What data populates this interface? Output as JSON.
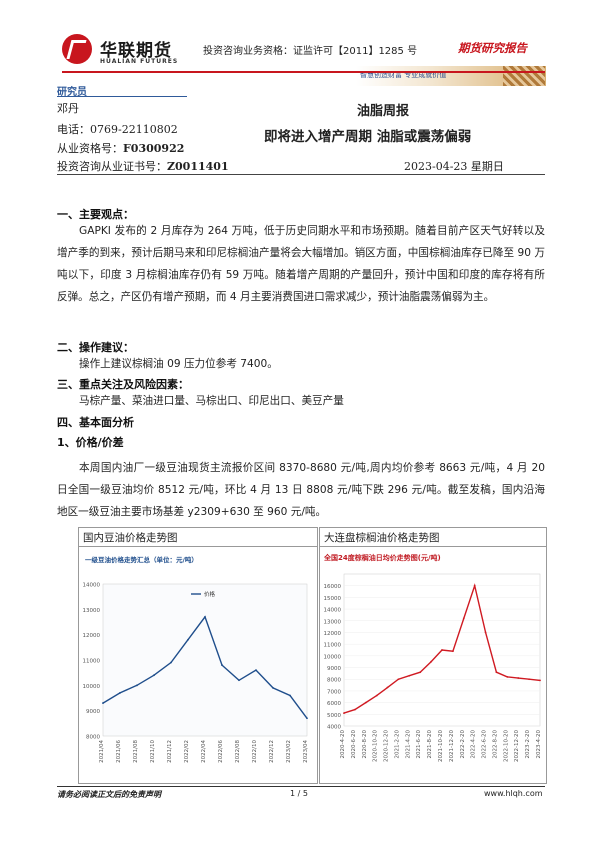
{
  "header": {
    "logo_cn": "华联期货",
    "logo_en": "HUALIAN FUTURES",
    "qualification": "投资咨询业务资格：证监许可【2011】1285 号",
    "report_type": "期货研究报告",
    "slogan": "智慧创造财富  专业成就价值"
  },
  "analyst": {
    "role": "研究员",
    "name": "邓丹",
    "phone": "电话：0769-22110802",
    "license_label": "从业资格号：",
    "license_value": "F0300922",
    "advisory_label": "投资咨询从业证书号：",
    "advisory_value": "Z0011401"
  },
  "title": {
    "main": "油脂周报",
    "sub": "即将进入增产周期 油脂或震荡偏弱",
    "date": "2023-04-23 星期日"
  },
  "sections": {
    "s1_heading": "一、主要观点：",
    "s1_text": "GAPKI 发布的 2 月库存为 264 万吨，低于历史同期水平和市场预期。随着目前产区天气好转以及增产季的到来，预计后期马来和印尼棕榈油产量将会大幅增加。销区方面，中国棕榈油库存已降至 90 万吨以下，印度 3 月棕榈油库存仍有 59 万吨。随着增产周期的产量回升，预计中国和印度的库存将有所反弹。总之，产区仍有增产预期，而 4 月主要消费国进口需求减少，预计油脂震荡偏弱为主。",
    "s2_heading": "二、操作建议：",
    "s2_text": "操作上建议棕榈油 09 压力位参考 7400。",
    "s3_heading": "三、重点关注及风险因素：",
    "s3_text": "马棕产量、菜油进口量、马棕出口、印尼出口、美豆产量",
    "s4_heading": "四、基本面分析",
    "s4_sub": "1、价格/价差",
    "s4_text": "本周国内油厂一级豆油现货主流报价区间 8370-8680 元/吨,周内均价参考 8663 元/吨，4 月 20 日全国一级豆油均价 8512 元/吨，环比 4 月 13 日 8808 元/吨下跌 296 元/吨。截至发稿，国内沿海地区一级豆油主要市场基差 y2309+630 至 960 元/吨。"
  },
  "chart_data": [
    {
      "type": "line",
      "box_title": "国内豆油价格走势图",
      "title": "一级豆油价格走势汇总（单位：元/吨）",
      "legend": "价格",
      "ylim": [
        8000,
        14000
      ],
      "yticks": [
        "14000",
        "13000",
        "12000",
        "11000",
        "10000",
        "9000",
        "8000"
      ],
      "xticks": [
        "2021/04",
        "2021/06",
        "2021/08",
        "2021/10",
        "2021/12",
        "2022/02",
        "2022/04",
        "2022/06",
        "2022/08",
        "2022/10",
        "2022/12",
        "2023/02",
        "2023/04"
      ],
      "x": [
        "2021/04",
        "2021/06",
        "2021/08",
        "2021/10",
        "2021/12",
        "2022/02",
        "2022/04",
        "2022/06",
        "2022/08",
        "2022/10",
        "2022/12",
        "2023/02",
        "2023/04"
      ],
      "values": [
        9300,
        9700,
        10000,
        10400,
        10900,
        11800,
        12700,
        10800,
        10200,
        10600,
        9900,
        9600,
        8700
      ],
      "color": "#1f4e8c"
    },
    {
      "type": "line",
      "box_title": "大连盘棕榈油价格走势图",
      "title": "全国24度棕榈油日均价走势图(元/吨)",
      "ylim": [
        4000,
        17000
      ],
      "yticks": [
        "16000",
        "15000",
        "14000",
        "13000",
        "12000",
        "11000",
        "10000",
        "9000",
        "8000",
        "7000",
        "6000",
        "5000",
        "4000"
      ],
      "xticks": [
        "2020-4-20",
        "2020-6-20",
        "2020-8-20",
        "2020-10-20",
        "2020-12-20",
        "2021-2-20",
        "2021-4-20",
        "2021-6-20",
        "2021-8-20",
        "2021-10-20",
        "2021-12-20",
        "2022-2-20",
        "2022-4-20",
        "2022-6-20",
        "2022-8-20",
        "2022-10-20",
        "2022-12-20",
        "2023-2-20",
        "2023-4-20"
      ],
      "x": [
        "2020-4-20",
        "2020-6-20",
        "2020-8-20",
        "2020-10-20",
        "2020-12-20",
        "2021-2-20",
        "2021-4-20",
        "2021-6-20",
        "2021-8-20",
        "2021-10-20",
        "2021-12-20",
        "2022-2-20",
        "2022-4-20",
        "2022-6-20",
        "2022-8-20",
        "2022-10-20",
        "2022-12-20",
        "2023-2-20",
        "2023-4-20"
      ],
      "values": [
        5100,
        5400,
        6000,
        6600,
        7300,
        8000,
        8300,
        8600,
        9500,
        10500,
        10400,
        13200,
        16000,
        12000,
        8600,
        8200,
        8100,
        8000,
        7900
      ],
      "color": "#d01a22"
    }
  ],
  "footer": {
    "disclaimer": "请务必阅读正文后的免责声明",
    "page": "1 / 5",
    "site": "www.hlqh.com"
  }
}
